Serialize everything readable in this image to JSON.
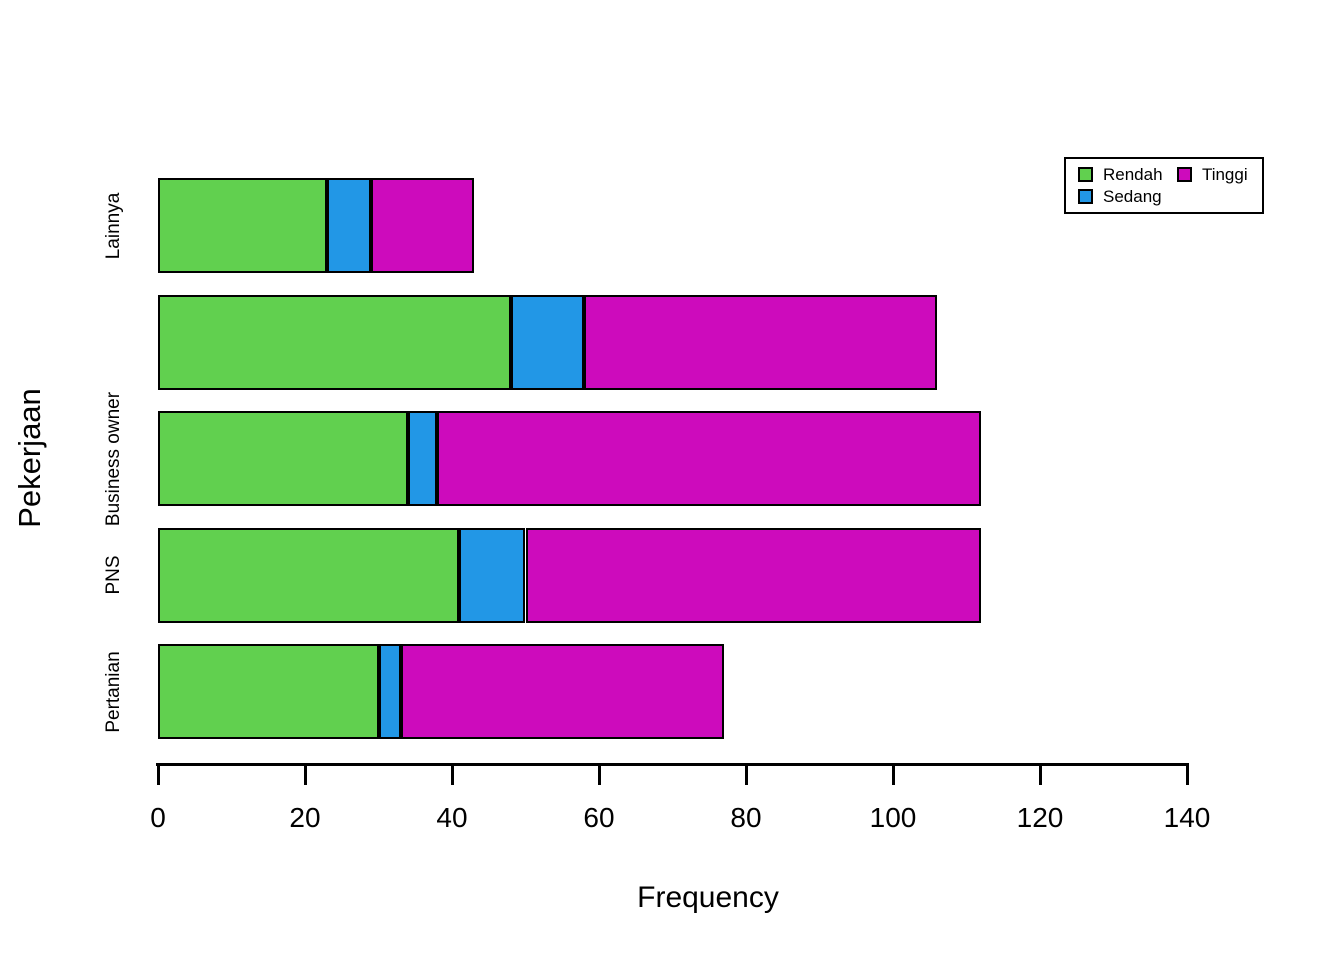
{
  "chart_data": {
    "type": "bar",
    "orientation": "horizontal",
    "stacked": true,
    "title": "",
    "xlabel": "Frequency",
    "ylabel": "Pekerjaan",
    "categories_top_to_bottom": [
      "Lainnya",
      "",
      "Business owner",
      "PNS",
      "Pertanian"
    ],
    "series": [
      {
        "name": "Rendah",
        "color": "#61D04F",
        "values": [
          23,
          48,
          34,
          41,
          30
        ]
      },
      {
        "name": "Sedang",
        "color": "#2297E6",
        "values": [
          6,
          10,
          4,
          9,
          3
        ]
      },
      {
        "name": "Tinggi",
        "color": "#CD0BBC",
        "values": [
          14,
          48,
          74,
          62,
          44
        ]
      }
    ],
    "totals": [
      43,
      106,
      112,
      112,
      77
    ],
    "x_ticks": [
      0,
      20,
      40,
      60,
      80,
      100,
      120,
      140
    ],
    "xlim": [
      0,
      140
    ],
    "grid": false,
    "legend": {
      "position": "top-right",
      "columns": [
        [
          "Rendah",
          "Sedang"
        ],
        [
          "Tinggi"
        ]
      ]
    },
    "bar_border_color": "#000000",
    "background": "#FFFFFF"
  }
}
